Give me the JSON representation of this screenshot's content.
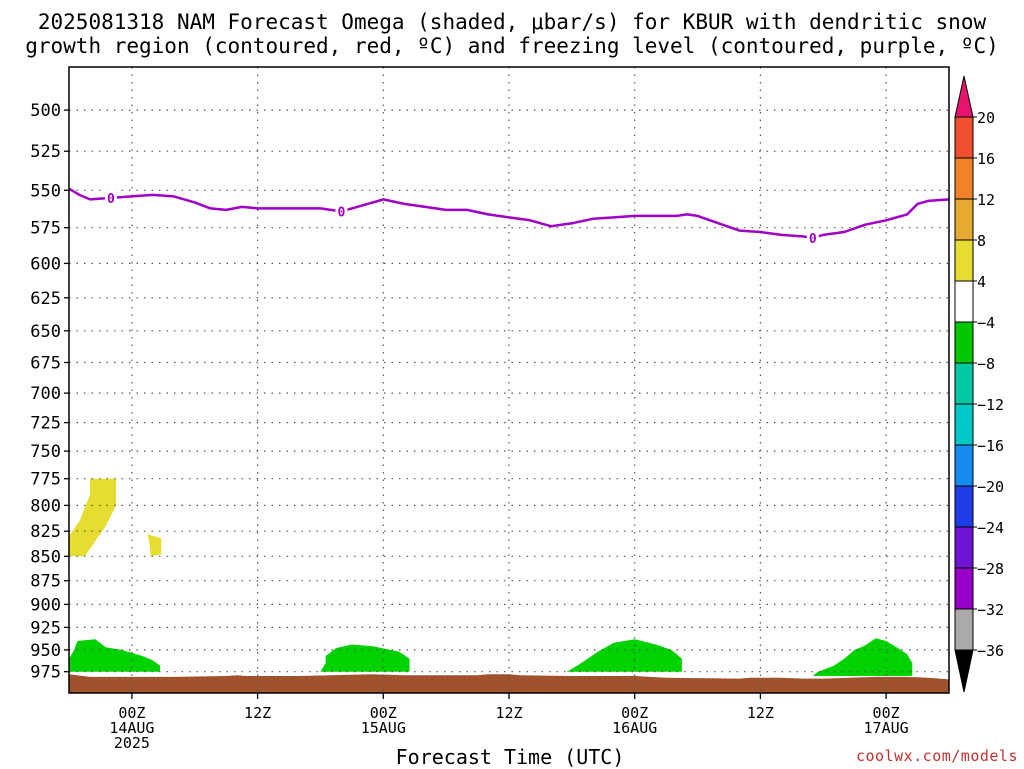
{
  "title": {
    "line1": "2025081318 NAM Forecast Omega (shaded, μbar/s) for KBUR with dendritic snow",
    "line2": "growth region (contoured, red, ºC) and freezing level (contoured, purple, ºC)"
  },
  "credit": "coolwx.com/models",
  "chart_data": {
    "type": "area",
    "title": "2025081318 NAM Forecast Omega (shaded, μbar/s) for KBUR with dendritic snow growth region (contoured, red, ºC) and freezing level (contoured, purple, ºC)",
    "xlabel": "Forecast Time (UTC)",
    "ylabel": "",
    "x_unit": "forecast hours from 2025-08-13 18Z",
    "xlim": [
      0,
      84
    ],
    "ylim": [
      1000,
      475
    ],
    "y_scale": "log",
    "grid": true,
    "y_ticks": [
      500,
      525,
      550,
      575,
      600,
      625,
      650,
      675,
      700,
      725,
      750,
      775,
      800,
      825,
      850,
      875,
      900,
      925,
      950,
      975
    ],
    "x_ticks": [
      {
        "x": 6,
        "lines": [
          "00Z",
          "14AUG",
          "2025"
        ]
      },
      {
        "x": 18,
        "lines": [
          "12Z"
        ]
      },
      {
        "x": 30,
        "lines": [
          "00Z",
          "15AUG"
        ]
      },
      {
        "x": 42,
        "lines": [
          "12Z"
        ]
      },
      {
        "x": 54,
        "lines": [
          "00Z",
          "16AUG"
        ]
      },
      {
        "x": 66,
        "lines": [
          "12Z"
        ]
      },
      {
        "x": 78,
        "lines": [
          "00Z",
          "17AUG"
        ]
      }
    ],
    "freezing_level": {
      "label": "0",
      "color": "#a000c8",
      "label_x": [
        4,
        26,
        71
      ],
      "points": [
        [
          0,
          549
        ],
        [
          1,
          553
        ],
        [
          2,
          556
        ],
        [
          4,
          555
        ],
        [
          6,
          554
        ],
        [
          8,
          553
        ],
        [
          10,
          554
        ],
        [
          12,
          558
        ],
        [
          13.5,
          562
        ],
        [
          15,
          563
        ],
        [
          16.5,
          561
        ],
        [
          18,
          562
        ],
        [
          20,
          562
        ],
        [
          22,
          562
        ],
        [
          24,
          562
        ],
        [
          26,
          564
        ],
        [
          28,
          560
        ],
        [
          30,
          556
        ],
        [
          32,
          559
        ],
        [
          34,
          561
        ],
        [
          36,
          563
        ],
        [
          38,
          563
        ],
        [
          40,
          566
        ],
        [
          42,
          568
        ],
        [
          44,
          570
        ],
        [
          46,
          574
        ],
        [
          48,
          572
        ],
        [
          50,
          569
        ],
        [
          52,
          568
        ],
        [
          54,
          567
        ],
        [
          56,
          567
        ],
        [
          58,
          567
        ],
        [
          59,
          566
        ],
        [
          60,
          567
        ],
        [
          62,
          572
        ],
        [
          64,
          577
        ],
        [
          66,
          578
        ],
        [
          68,
          580
        ],
        [
          70,
          581
        ],
        [
          71,
          582
        ],
        [
          72,
          580
        ],
        [
          74,
          578
        ],
        [
          76,
          573
        ],
        [
          78,
          570
        ],
        [
          80,
          566
        ],
        [
          81,
          559
        ],
        [
          82,
          557
        ],
        [
          84,
          556
        ]
      ]
    },
    "omega_regions": [
      {
        "level": "4 to 8",
        "color": "#e6dc32",
        "points": [
          [
            2,
            775
          ],
          [
            4.5,
            775
          ],
          [
            4.5,
            800
          ],
          [
            3.5,
            820
          ],
          [
            1.5,
            850
          ],
          [
            0,
            850
          ],
          [
            0,
            830
          ],
          [
            1,
            815
          ],
          [
            2,
            790
          ]
        ]
      },
      {
        "level": "4 to 8",
        "color": "#e6dc32",
        "points": [
          [
            7.5,
            828
          ],
          [
            8.8,
            832
          ],
          [
            8.8,
            848
          ],
          [
            7.8,
            850
          ],
          [
            7.7,
            838
          ]
        ]
      },
      {
        "level": "-8 to -4",
        "color": "#00d200",
        "points": [
          [
            0,
            975
          ],
          [
            0,
            960
          ],
          [
            0.5,
            950
          ],
          [
            0.8,
            940
          ],
          [
            2.5,
            938
          ],
          [
            3.5,
            947
          ],
          [
            5,
            950
          ],
          [
            7,
            957
          ],
          [
            8,
            962
          ],
          [
            8.7,
            968
          ],
          [
            8.7,
            975
          ]
        ]
      },
      {
        "level": "-8 to -4",
        "color": "#00d200",
        "points": [
          [
            24,
            975
          ],
          [
            24.5,
            965
          ],
          [
            24.5,
            957
          ],
          [
            25.5,
            948
          ],
          [
            27,
            944
          ],
          [
            29,
            946
          ],
          [
            31.5,
            952
          ],
          [
            32.5,
            960
          ],
          [
            32.5,
            975
          ]
        ]
      },
      {
        "level": "-8 to -4",
        "color": "#00d200",
        "points": [
          [
            47.5,
            975
          ],
          [
            48.5,
            968
          ],
          [
            49.5,
            960
          ],
          [
            50.5,
            952
          ],
          [
            52,
            942
          ],
          [
            54,
            938
          ],
          [
            56,
            944
          ],
          [
            57.5,
            950
          ],
          [
            58.5,
            960
          ],
          [
            58.5,
            975
          ]
        ]
      },
      {
        "level": "-8 to -4",
        "color": "#00d200",
        "points": [
          [
            71,
            980
          ],
          [
            71.5,
            975
          ],
          [
            73,
            968
          ],
          [
            74,
            960
          ],
          [
            75,
            950
          ],
          [
            76,
            945
          ],
          [
            77,
            937
          ],
          [
            78,
            940
          ],
          [
            79,
            947
          ],
          [
            80,
            955
          ],
          [
            80.5,
            965
          ],
          [
            80.5,
            980
          ]
        ]
      }
    ],
    "terrain": {
      "color": "#a0522d",
      "points": [
        [
          0,
          978
        ],
        [
          2,
          981
        ],
        [
          6,
          981
        ],
        [
          10,
          981
        ],
        [
          15,
          980
        ],
        [
          16,
          979
        ],
        [
          17,
          980
        ],
        [
          20,
          980
        ],
        [
          22,
          980
        ],
        [
          25,
          979
        ],
        [
          29,
          978
        ],
        [
          32,
          979
        ],
        [
          39,
          979
        ],
        [
          40,
          978
        ],
        [
          42,
          978
        ],
        [
          43,
          979
        ],
        [
          48,
          980
        ],
        [
          54,
          980
        ],
        [
          57,
          982
        ],
        [
          64,
          983
        ],
        [
          65,
          982
        ],
        [
          68,
          982
        ],
        [
          70,
          983
        ],
        [
          72,
          983
        ],
        [
          77,
          981
        ],
        [
          80,
          981
        ],
        [
          82,
          982
        ],
        [
          84,
          984
        ]
      ]
    },
    "colorbar": {
      "boundaries": [
        -36,
        -32,
        -28,
        -24,
        -20,
        -16,
        -12,
        -8,
        -4,
        4,
        8,
        12,
        16,
        20
      ],
      "colors": [
        "#aaaaaa",
        "#9600c8",
        "#6e14d2",
        "#1e3ce6",
        "#148cf0",
        "#00c8c8",
        "#00c8a0",
        "#00c800",
        "#ffffff",
        "#e6dc32",
        "#e6aa32",
        "#f08228",
        "#f05032",
        "#e6146e"
      ],
      "under_color": "#000000",
      "over_color": "#e6146e"
    }
  }
}
